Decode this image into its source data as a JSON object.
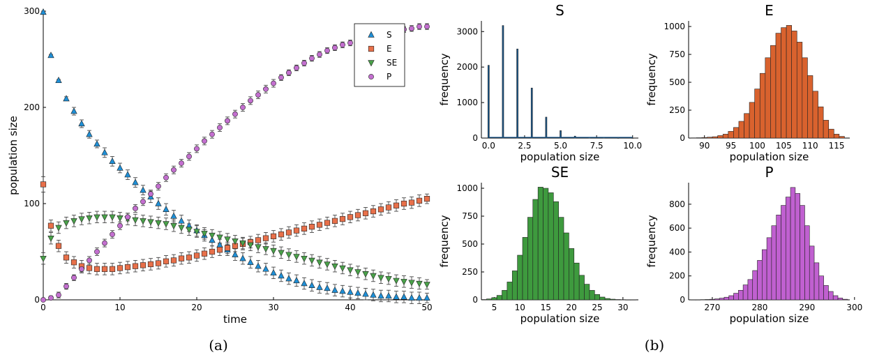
{
  "colors": {
    "S": "#1f8fd6",
    "E": "#e8704a",
    "SE": "#4aa24a",
    "P": "#c36fcf",
    "S_hist": "#1a5a90",
    "E_hist": "#d9622e",
    "SE_hist": "#3e9a3e",
    "P_hist": "#c060d0"
  },
  "captions": {
    "a": "(a)",
    "b": "(b)"
  },
  "chart_data": [
    {
      "type": "scatter",
      "xlabel": "time",
      "ylabel": "population size",
      "xlim": [
        0,
        50
      ],
      "ylim": [
        0,
        300
      ],
      "xticks": [
        0,
        10,
        20,
        30,
        40,
        50
      ],
      "yticks": [
        0,
        100,
        200,
        300
      ],
      "legend_position": "top-right",
      "error_bars": true,
      "x": [
        0,
        1,
        2,
        3,
        4,
        5,
        6,
        7,
        8,
        9,
        10,
        11,
        12,
        13,
        14,
        15,
        16,
        17,
        18,
        19,
        20,
        21,
        22,
        23,
        24,
        25,
        26,
        27,
        28,
        29,
        30,
        31,
        32,
        33,
        34,
        35,
        36,
        37,
        38,
        39,
        40,
        41,
        42,
        43,
        44,
        45,
        46,
        47,
        48,
        49,
        50
      ],
      "series": [
        {
          "name": "S",
          "marker": "triangle-up",
          "values": [
            299,
            254,
            228,
            209,
            196,
            183,
            172,
            162,
            153,
            144,
            137,
            130,
            122,
            114,
            107,
            100,
            94,
            87,
            82,
            77,
            72,
            67,
            62,
            57,
            52,
            47,
            43,
            39,
            35,
            32,
            28,
            25,
            22,
            20,
            17,
            15,
            13,
            12,
            10,
            9,
            8,
            7,
            6,
            5,
            4,
            4,
            3,
            3,
            2,
            2,
            2
          ],
          "errors": [
            1,
            1,
            1,
            2,
            4,
            4,
            4,
            4,
            5,
            5,
            5,
            5,
            5,
            5,
            6,
            6,
            6,
            6,
            6,
            6,
            6,
            6,
            6,
            6,
            6,
            6,
            6,
            6,
            6,
            6,
            6,
            6,
            6,
            6,
            6,
            6,
            6,
            6,
            6,
            6,
            6,
            6,
            6,
            6,
            6,
            6,
            6,
            6,
            6,
            6,
            5
          ]
        },
        {
          "name": "E",
          "values": [
            120,
            77,
            56,
            44,
            39,
            35,
            33,
            32,
            32,
            32,
            33,
            34,
            35,
            36,
            37,
            38,
            40,
            41,
            43,
            44,
            46,
            48,
            50,
            52,
            54,
            56,
            58,
            60,
            62,
            64,
            66,
            68,
            70,
            72,
            74,
            76,
            78,
            80,
            82,
            84,
            86,
            88,
            90,
            92,
            94,
            96,
            98,
            100,
            101,
            103,
            105
          ],
          "errors": [
            8,
            6,
            6,
            6,
            6,
            6,
            6,
            6,
            6,
            6,
            6,
            6,
            6,
            6,
            6,
            6,
            6,
            6,
            6,
            6,
            6,
            6,
            6,
            6,
            6,
            6,
            6,
            6,
            6,
            6,
            6,
            6,
            6,
            6,
            6,
            6,
            6,
            6,
            6,
            6,
            6,
            6,
            6,
            6,
            6,
            6,
            6,
            6,
            6,
            6,
            5
          ],
          "marker": "square"
        },
        {
          "name": "SE",
          "marker": "triangle-down",
          "values": [
            43,
            64,
            75,
            80,
            82,
            84,
            85,
            86,
            86,
            86,
            85,
            84,
            83,
            82,
            81,
            80,
            79,
            77,
            75,
            73,
            71,
            69,
            67,
            65,
            63,
            61,
            59,
            57,
            55,
            53,
            51,
            49,
            47,
            45,
            43,
            41,
            39,
            37,
            35,
            33,
            31,
            29,
            27,
            25,
            23,
            22,
            20,
            19,
            18,
            17,
            16
          ],
          "errors": [
            6,
            6,
            6,
            6,
            6,
            6,
            6,
            6,
            6,
            6,
            6,
            6,
            6,
            6,
            6,
            6,
            6,
            6,
            6,
            6,
            6,
            6,
            6,
            6,
            6,
            6,
            6,
            6,
            6,
            6,
            6,
            6,
            6,
            6,
            6,
            6,
            6,
            6,
            6,
            6,
            6,
            6,
            6,
            6,
            6,
            6,
            6,
            6,
            6,
            6,
            5
          ]
        },
        {
          "name": "P",
          "marker": "circle",
          "values": [
            0,
            2,
            5,
            14,
            23,
            32,
            41,
            50,
            59,
            68,
            77,
            86,
            95,
            102,
            110,
            118,
            127,
            135,
            142,
            149,
            157,
            165,
            172,
            179,
            186,
            193,
            200,
            207,
            213,
            219,
            225,
            231,
            236,
            241,
            246,
            251,
            255,
            259,
            262,
            265,
            267,
            269,
            271,
            273,
            275,
            277,
            279,
            281,
            282,
            284,
            284
          ],
          "errors": [
            1,
            2,
            3,
            3,
            3,
            4,
            4,
            4,
            4,
            4,
            4,
            4,
            4,
            4,
            4,
            4,
            4,
            4,
            4,
            4,
            4,
            4,
            4,
            4,
            4,
            4,
            4,
            4,
            4,
            4,
            4,
            3,
            3,
            3,
            3,
            3,
            3,
            3,
            3,
            3,
            3,
            3,
            3,
            3,
            3,
            3,
            3,
            3,
            3,
            3,
            3
          ]
        }
      ]
    },
    {
      "type": "bar",
      "title": "S",
      "xlabel": "population size",
      "ylabel": "frequency",
      "xlim": [
        -0.5,
        10.4
      ],
      "ylim": [
        0,
        3300
      ],
      "xticks": [
        "0.0",
        "2.5",
        "5.0",
        "7.5",
        "10.0"
      ],
      "yticks": [
        0,
        1000,
        2000,
        3000
      ],
      "bin_width": 0.1,
      "categories": [
        0,
        1,
        2,
        3,
        4,
        5,
        6,
        7,
        8,
        9,
        10
      ],
      "values": [
        2050,
        3170,
        2510,
        1410,
        590,
        210,
        55,
        15,
        5,
        2,
        1
      ]
    },
    {
      "type": "bar",
      "title": "E",
      "xlabel": "population size",
      "ylabel": "frequency",
      "xlim": [
        87,
        117.5
      ],
      "ylim": [
        0,
        1050
      ],
      "xticks": [
        90,
        95,
        100,
        105,
        110,
        115
      ],
      "yticks": [
        0,
        250,
        500,
        750,
        1000
      ],
      "bin_width": 1,
      "categories": [
        88,
        89,
        90,
        91,
        92,
        93,
        94,
        95,
        96,
        97,
        98,
        99,
        100,
        101,
        102,
        103,
        104,
        105,
        106,
        107,
        108,
        109,
        110,
        111,
        112,
        113,
        114,
        115,
        116
      ],
      "values": [
        2,
        3,
        5,
        8,
        12,
        22,
        35,
        60,
        95,
        150,
        220,
        320,
        440,
        580,
        720,
        830,
        940,
        990,
        1010,
        960,
        860,
        720,
        560,
        420,
        280,
        160,
        80,
        35,
        15
      ]
    },
    {
      "type": "bar",
      "title": "SE",
      "xlabel": "population size",
      "ylabel": "frequency",
      "xlim": [
        2.5,
        33
      ],
      "ylim": [
        0,
        1050
      ],
      "xticks": [
        5,
        10,
        15,
        20,
        25,
        30
      ],
      "yticks": [
        0,
        250,
        500,
        750,
        1000
      ],
      "bin_width": 1,
      "categories": [
        3,
        4,
        5,
        6,
        7,
        8,
        9,
        10,
        11,
        12,
        13,
        14,
        15,
        16,
        17,
        18,
        19,
        20,
        21,
        22,
        23,
        24,
        25,
        26,
        27,
        28,
        29,
        30,
        31,
        32
      ],
      "values": [
        3,
        8,
        20,
        40,
        85,
        160,
        260,
        400,
        560,
        740,
        900,
        1010,
        1000,
        960,
        880,
        740,
        600,
        460,
        330,
        220,
        140,
        85,
        48,
        25,
        12,
        6,
        3,
        2,
        1,
        1
      ]
    },
    {
      "type": "bar",
      "title": "P",
      "xlabel": "population size",
      "ylabel": "frequency",
      "xlim": [
        265,
        299
      ],
      "ylim": [
        0,
        980
      ],
      "xticks": [
        270,
        280,
        290,
        300
      ],
      "yticks": [
        0,
        200,
        400,
        600,
        800
      ],
      "bin_width": 1,
      "categories": [
        266,
        267,
        268,
        269,
        270,
        271,
        272,
        273,
        274,
        275,
        276,
        277,
        278,
        279,
        280,
        281,
        282,
        283,
        284,
        285,
        286,
        287,
        288,
        289,
        290,
        291,
        292,
        293,
        294,
        295,
        296,
        297,
        298
      ],
      "values": [
        1,
        1,
        2,
        3,
        5,
        8,
        14,
        22,
        35,
        55,
        80,
        125,
        170,
        245,
        330,
        420,
        520,
        620,
        710,
        790,
        860,
        940,
        890,
        790,
        620,
        450,
        310,
        200,
        120,
        70,
        35,
        15,
        5
      ]
    }
  ]
}
